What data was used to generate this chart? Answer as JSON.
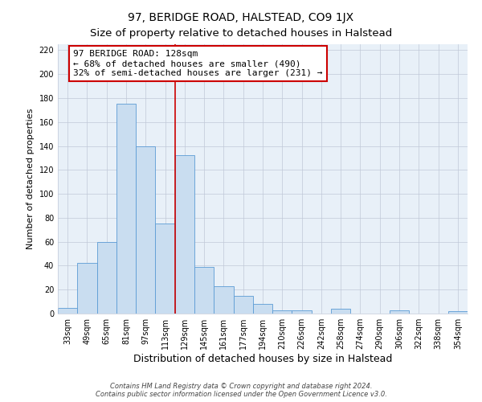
{
  "title": "97, BERIDGE ROAD, HALSTEAD, CO9 1JX",
  "subtitle": "Size of property relative to detached houses in Halstead",
  "xlabel": "Distribution of detached houses by size in Halstead",
  "ylabel": "Number of detached properties",
  "bar_labels": [
    "33sqm",
    "49sqm",
    "65sqm",
    "81sqm",
    "97sqm",
    "113sqm",
    "129sqm",
    "145sqm",
    "161sqm",
    "177sqm",
    "194sqm",
    "210sqm",
    "226sqm",
    "242sqm",
    "258sqm",
    "274sqm",
    "290sqm",
    "306sqm",
    "322sqm",
    "338sqm",
    "354sqm"
  ],
  "bar_heights": [
    5,
    42,
    60,
    175,
    140,
    75,
    132,
    39,
    23,
    15,
    8,
    3,
    3,
    0,
    4,
    0,
    0,
    3,
    0,
    0,
    2
  ],
  "bar_color": "#c9ddf0",
  "bar_edge_color": "#5b9bd5",
  "vline_color": "#cc0000",
  "annotation_title": "97 BERIDGE ROAD: 128sqm",
  "annotation_line1": "← 68% of detached houses are smaller (490)",
  "annotation_line2": "32% of semi-detached houses are larger (231) →",
  "annotation_box_color": "#ffffff",
  "annotation_box_edge": "#cc0000",
  "ylim": [
    0,
    225
  ],
  "yticks": [
    0,
    20,
    40,
    60,
    80,
    100,
    120,
    140,
    160,
    180,
    200,
    220
  ],
  "figure_bg": "#ffffff",
  "plot_bg": "#e8f0f8",
  "grid_color": "#c0c8d8",
  "footer_line1": "Contains HM Land Registry data © Crown copyright and database right 2024.",
  "footer_line2": "Contains public sector information licensed under the Open Government Licence v3.0.",
  "title_fontsize": 10,
  "subtitle_fontsize": 9.5,
  "xlabel_fontsize": 9,
  "ylabel_fontsize": 8,
  "tick_fontsize": 7,
  "footer_fontsize": 6,
  "annot_fontsize": 8
}
